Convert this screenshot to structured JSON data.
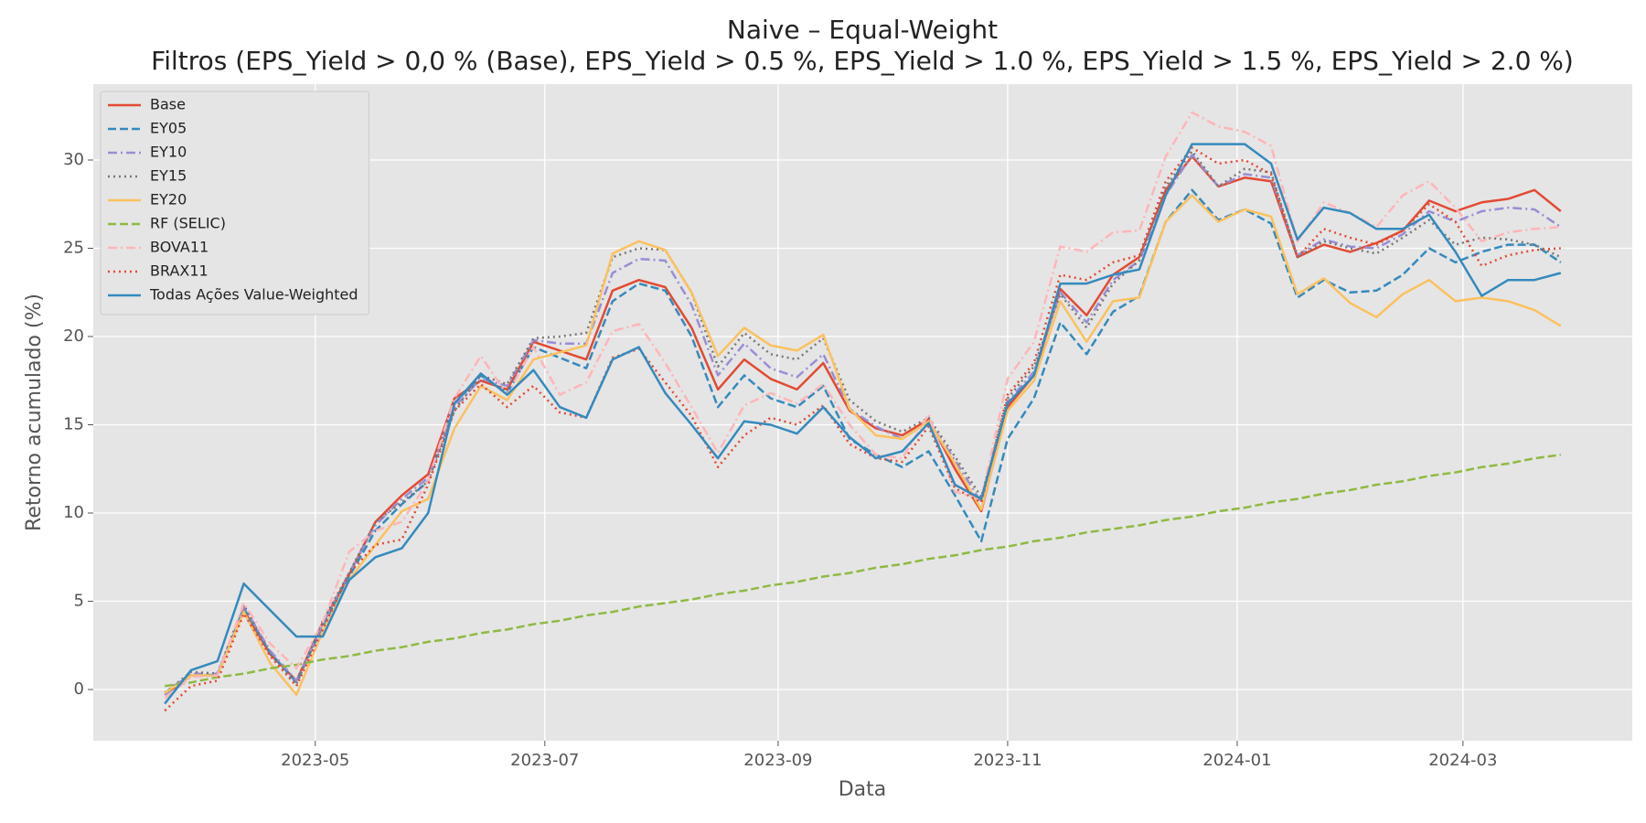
{
  "chart_data": {
    "type": "line",
    "title": "Naive – Equal-Weight",
    "subtitle": "Filtros (EPS_Yield > 0,0 % (Base), EPS_Yield > 0.5 %, EPS_Yield > 1.0 %, EPS_Yield > 1.5 %, EPS_Yield > 2.0 %)",
    "xlabel": "Data",
    "ylabel": "Retorno acumulado (%)",
    "grid": true,
    "legend": "upper left",
    "x": [
      "2023-03-22",
      "2023-03-29",
      "2023-04-05",
      "2023-04-12",
      "2023-04-19",
      "2023-04-26",
      "2023-05-03",
      "2023-05-10",
      "2023-05-17",
      "2023-05-24",
      "2023-05-31",
      "2023-06-07",
      "2023-06-14",
      "2023-06-21",
      "2023-06-28",
      "2023-07-05",
      "2023-07-12",
      "2023-07-19",
      "2023-07-26",
      "2023-08-02",
      "2023-08-09",
      "2023-08-16",
      "2023-08-23",
      "2023-08-30",
      "2023-09-06",
      "2023-09-13",
      "2023-09-20",
      "2023-09-27",
      "2023-10-04",
      "2023-10-11",
      "2023-10-18",
      "2023-10-25",
      "2023-11-01",
      "2023-11-08",
      "2023-11-15",
      "2023-11-22",
      "2023-11-29",
      "2023-12-06",
      "2023-12-13",
      "2023-12-20",
      "2023-12-27",
      "2024-01-03",
      "2024-01-10",
      "2024-01-17",
      "2024-01-24",
      "2024-01-31",
      "2024-02-07",
      "2024-02-14",
      "2024-02-21",
      "2024-02-28",
      "2024-03-06",
      "2024-03-13",
      "2024-03-20",
      "2024-03-27"
    ],
    "xlim": [
      "2023-03-03",
      "2024-04-15"
    ],
    "xticks": [
      {
        "value": "2023-05-01",
        "label": "2023-05"
      },
      {
        "value": "2023-07-01",
        "label": "2023-07"
      },
      {
        "value": "2023-09-01",
        "label": "2023-09"
      },
      {
        "value": "2023-11-01",
        "label": "2023-11"
      },
      {
        "value": "2024-01-01",
        "label": "2024-01"
      },
      {
        "value": "2024-03-01",
        "label": "2024-03"
      }
    ],
    "ylim": [
      -2.9,
      34.3
    ],
    "yticks": [
      0,
      5,
      10,
      15,
      20,
      25,
      30
    ],
    "series": [
      {
        "name": "Base",
        "color": "#E24A33",
        "linestyle": "solid",
        "values": [
          -0.3,
          0.8,
          0.8,
          4.5,
          2.0,
          0.5,
          3.8,
          6.5,
          9.5,
          11.0,
          12.2,
          16.5,
          17.5,
          17.0,
          19.7,
          19.2,
          18.7,
          22.6,
          23.2,
          22.8,
          20.5,
          17.0,
          18.7,
          17.6,
          17.0,
          18.5,
          15.8,
          14.8,
          14.4,
          15.3,
          12.5,
          10.1,
          16.0,
          17.8,
          22.7,
          21.2,
          23.5,
          24.5,
          28.3,
          30.2,
          28.5,
          29.0,
          28.8,
          24.5,
          25.2,
          24.8,
          25.3,
          26.0,
          27.7,
          27.1,
          27.6,
          27.8,
          28.3,
          27.1
        ]
      },
      {
        "name": "EY05",
        "color": "#348ABD",
        "linestyle": "dashed",
        "values": [
          -0.2,
          0.9,
          0.8,
          4.6,
          2.1,
          0.4,
          3.6,
          6.4,
          9.0,
          10.5,
          11.8,
          16.2,
          17.8,
          16.8,
          19.4,
          18.8,
          18.2,
          22.0,
          23.0,
          22.6,
          20.0,
          16.0,
          17.8,
          16.5,
          16.0,
          17.2,
          14.2,
          13.3,
          12.6,
          13.5,
          11.0,
          8.4,
          14.2,
          16.5,
          20.8,
          19.0,
          21.4,
          22.3,
          26.5,
          28.3,
          26.6,
          27.2,
          26.4,
          22.2,
          23.2,
          22.5,
          22.6,
          23.5,
          25.0,
          24.2,
          24.8,
          25.2,
          25.2,
          24.2
        ]
      },
      {
        "name": "EY10",
        "color": "#988ED5",
        "linestyle": "dashdot",
        "values": [
          -0.3,
          0.9,
          0.9,
          4.7,
          2.2,
          0.5,
          3.7,
          6.6,
          9.3,
          10.8,
          12.0,
          16.0,
          17.6,
          17.2,
          19.8,
          19.6,
          19.6,
          23.6,
          24.4,
          24.3,
          21.8,
          17.8,
          19.6,
          18.2,
          17.7,
          19.0,
          15.9,
          14.9,
          14.2,
          15.2,
          13.0,
          10.6,
          16.3,
          18.0,
          22.5,
          20.8,
          23.2,
          24.3,
          28.0,
          30.3,
          28.5,
          29.2,
          29.0,
          24.6,
          25.5,
          25.1,
          25.0,
          25.8,
          27.1,
          26.5,
          27.1,
          27.3,
          27.2,
          26.2
        ]
      },
      {
        "name": "EY15",
        "color": "#777777",
        "linestyle": "dotted",
        "values": [
          -0.2,
          1.0,
          0.9,
          4.8,
          2.0,
          0.3,
          3.9,
          6.6,
          9.5,
          10.6,
          11.8,
          15.8,
          17.8,
          17.3,
          19.9,
          20.0,
          20.2,
          24.5,
          25.0,
          24.9,
          22.5,
          18.3,
          20.2,
          19.0,
          18.7,
          19.9,
          16.4,
          15.2,
          14.6,
          15.4,
          13.2,
          10.9,
          16.5,
          18.3,
          22.4,
          20.5,
          23.0,
          24.3,
          28.5,
          30.5,
          28.5,
          29.5,
          29.3,
          24.5,
          25.4,
          25.0,
          24.7,
          25.6,
          26.6,
          25.2,
          25.6,
          25.5,
          25.2,
          24.5
        ]
      },
      {
        "name": "EY20",
        "color": "#FBC15E",
        "linestyle": "solid",
        "values": [
          -0.2,
          0.8,
          0.8,
          4.4,
          1.5,
          -0.3,
          3.3,
          6.2,
          8.2,
          10.1,
          10.8,
          14.8,
          17.2,
          16.4,
          18.7,
          19.1,
          19.5,
          24.7,
          25.4,
          24.9,
          22.5,
          18.9,
          20.5,
          19.5,
          19.2,
          20.1,
          15.9,
          14.4,
          14.2,
          15.2,
          12.8,
          10.2,
          15.8,
          17.5,
          22.0,
          19.7,
          22.0,
          22.2,
          26.5,
          28.0,
          26.5,
          27.2,
          26.8,
          22.4,
          23.3,
          21.9,
          21.1,
          22.4,
          23.2,
          22.0,
          22.2,
          22.0,
          21.5,
          20.6
        ]
      },
      {
        "name": "RF (SELIC)",
        "color": "#8EBA42",
        "linestyle": "dashed",
        "values": [
          0.2,
          0.4,
          0.7,
          0.9,
          1.2,
          1.4,
          1.7,
          1.9,
          2.2,
          2.4,
          2.7,
          2.9,
          3.2,
          3.4,
          3.7,
          3.9,
          4.2,
          4.4,
          4.7,
          4.9,
          5.1,
          5.4,
          5.6,
          5.9,
          6.1,
          6.4,
          6.6,
          6.9,
          7.1,
          7.4,
          7.6,
          7.9,
          8.1,
          8.4,
          8.6,
          8.9,
          9.1,
          9.3,
          9.6,
          9.8,
          10.1,
          10.3,
          10.6,
          10.8,
          11.1,
          11.3,
          11.6,
          11.8,
          12.1,
          12.3,
          12.6,
          12.8,
          13.1,
          13.3
        ]
      },
      {
        "name": "BOVA11",
        "color": "#FFB5B8",
        "linestyle": "dashdot",
        "values": [
          -0.5,
          0.7,
          0.8,
          4.9,
          2.6,
          1.2,
          3.8,
          7.8,
          9.0,
          9.5,
          11.8,
          16.5,
          18.9,
          16.7,
          19.4,
          16.7,
          17.4,
          20.3,
          20.7,
          18.5,
          16.0,
          13.4,
          16.1,
          16.8,
          16.2,
          17.3,
          15.0,
          13.3,
          13.1,
          15.6,
          11.2,
          10.8,
          17.6,
          19.7,
          25.1,
          24.8,
          25.9,
          26.0,
          30.2,
          32.7,
          31.9,
          31.6,
          30.8,
          25.4,
          27.6,
          27.0,
          26.2,
          28.0,
          28.8,
          27.3,
          25.4,
          25.9,
          26.1,
          26.2
        ]
      },
      {
        "name": "BRAX11",
        "color": "#E24A33",
        "linestyle": "dotted",
        "values": [
          -1.2,
          0.2,
          0.5,
          4.3,
          1.9,
          0.2,
          3.4,
          6.6,
          8.2,
          8.5,
          11.6,
          15.8,
          17.3,
          16.0,
          17.2,
          15.7,
          15.4,
          18.8,
          19.3,
          17.4,
          15.5,
          12.6,
          14.4,
          15.4,
          15.0,
          16.1,
          13.9,
          13.1,
          12.9,
          14.9,
          11.4,
          10.6,
          16.7,
          18.5,
          23.5,
          23.2,
          24.2,
          24.6,
          28.8,
          30.7,
          29.8,
          30.0,
          29.2,
          24.5,
          26.1,
          25.6,
          25.2,
          26.0,
          27.5,
          26.5,
          24.0,
          24.6,
          24.9,
          25.0
        ]
      },
      {
        "name": "Todas Ações Value-Weighted",
        "color": "#348ABD",
        "linestyle": "solid",
        "values": [
          -0.8,
          1.1,
          1.6,
          6.0,
          4.5,
          3.0,
          3.0,
          6.2,
          7.5,
          8.0,
          10.0,
          16.2,
          17.9,
          16.7,
          18.1,
          16.0,
          15.4,
          18.7,
          19.4,
          16.8,
          15.0,
          13.1,
          15.2,
          15.0,
          14.5,
          16.0,
          14.3,
          13.1,
          13.5,
          15.1,
          11.6,
          10.8,
          16.2,
          17.8,
          23.0,
          23.0,
          23.5,
          23.8,
          28.0,
          30.9,
          30.9,
          30.9,
          29.8,
          25.5,
          27.3,
          27.0,
          26.1,
          26.1,
          26.9,
          24.8,
          22.3,
          23.2,
          23.2,
          23.6
        ]
      }
    ]
  }
}
